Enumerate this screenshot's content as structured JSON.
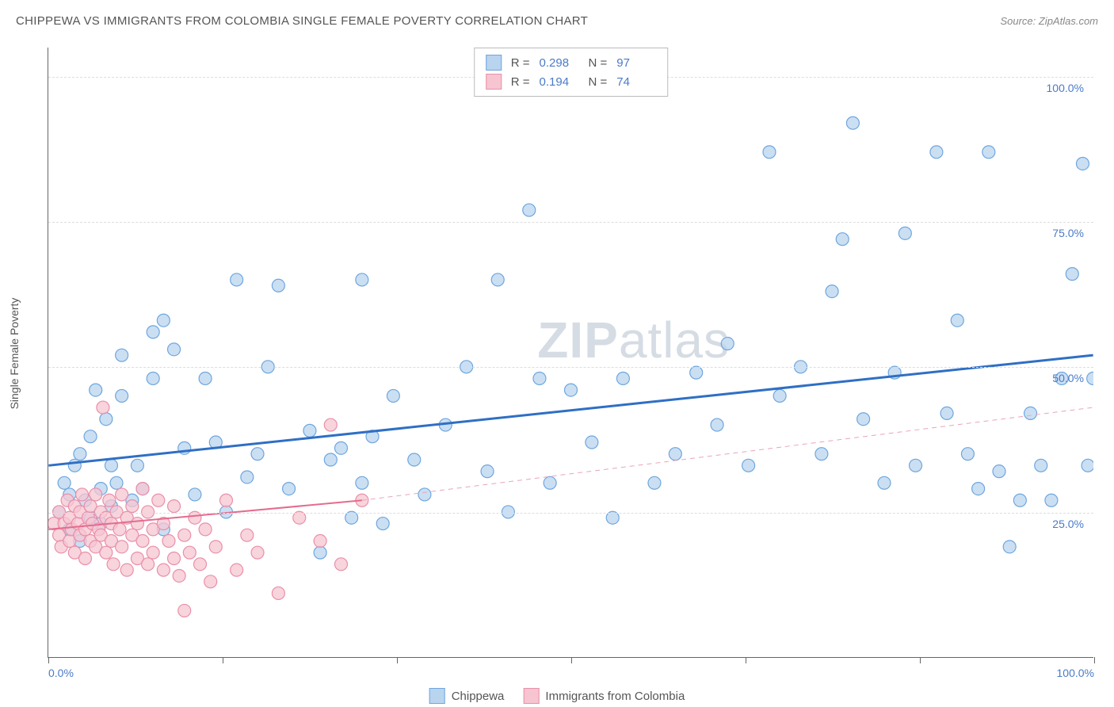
{
  "title": "CHIPPEWA VS IMMIGRANTS FROM COLOMBIA SINGLE FEMALE POVERTY CORRELATION CHART",
  "source": "Source: ZipAtlas.com",
  "watermark": {
    "bold": "ZIP",
    "rest": "atlas"
  },
  "yaxis": {
    "label": "Single Female Poverty"
  },
  "chart": {
    "type": "scatter",
    "xlim": [
      0,
      100
    ],
    "ylim": [
      0,
      105
    ],
    "background_color": "#ffffff",
    "grid_color": "#dddddd",
    "x_ticks": [
      0,
      16.67,
      33.33,
      50,
      66.67,
      83.33,
      100
    ],
    "x_tick_labels": [
      "0.0%",
      "",
      "",
      "",
      "",
      "",
      "100.0%"
    ],
    "y_gridlines": [
      25,
      50,
      75,
      100
    ],
    "y_tick_labels": [
      "25.0%",
      "50.0%",
      "75.0%",
      "100.0%"
    ],
    "marker_radius": 8,
    "series": [
      {
        "name": "Chippewa",
        "fill_color": "#b9d4ef",
        "stroke_color": "#6ea6de",
        "fill_opacity": 0.75,
        "r_value": "0.298",
        "n_value": "97",
        "trend": {
          "x1": 0,
          "y1": 33,
          "x2": 100,
          "y2": 52,
          "color": "#2f6fc4",
          "width": 3,
          "dash": false
        },
        "points": [
          [
            1,
            25
          ],
          [
            1.5,
            30
          ],
          [
            2,
            22
          ],
          [
            2,
            28
          ],
          [
            2.5,
            33
          ],
          [
            3,
            20
          ],
          [
            3,
            35
          ],
          [
            3.5,
            27
          ],
          [
            4,
            24
          ],
          [
            4,
            38
          ],
          [
            4.5,
            46
          ],
          [
            5,
            23
          ],
          [
            5,
            29
          ],
          [
            5.5,
            41
          ],
          [
            6,
            26
          ],
          [
            6,
            33
          ],
          [
            6.5,
            30
          ],
          [
            7,
            52
          ],
          [
            7,
            45
          ],
          [
            8,
            27
          ],
          [
            8.5,
            33
          ],
          [
            9,
            29
          ],
          [
            10,
            56
          ],
          [
            10,
            48
          ],
          [
            11,
            22
          ],
          [
            11,
            58
          ],
          [
            12,
            53
          ],
          [
            13,
            36
          ],
          [
            14,
            28
          ],
          [
            15,
            48
          ],
          [
            16,
            37
          ],
          [
            17,
            25
          ],
          [
            18,
            65
          ],
          [
            19,
            31
          ],
          [
            20,
            35
          ],
          [
            21,
            50
          ],
          [
            22,
            64
          ],
          [
            23,
            29
          ],
          [
            25,
            39
          ],
          [
            26,
            18
          ],
          [
            27,
            34
          ],
          [
            28,
            36
          ],
          [
            29,
            24
          ],
          [
            30,
            30
          ],
          [
            30,
            65
          ],
          [
            31,
            38
          ],
          [
            32,
            23
          ],
          [
            33,
            45
          ],
          [
            35,
            34
          ],
          [
            36,
            28
          ],
          [
            38,
            40
          ],
          [
            40,
            50
          ],
          [
            42,
            32
          ],
          [
            43,
            65
          ],
          [
            44,
            25
          ],
          [
            46,
            77
          ],
          [
            47,
            48
          ],
          [
            48,
            30
          ],
          [
            50,
            46
          ],
          [
            52,
            37
          ],
          [
            54,
            24
          ],
          [
            55,
            48
          ],
          [
            58,
            30
          ],
          [
            60,
            35
          ],
          [
            62,
            49
          ],
          [
            64,
            40
          ],
          [
            65,
            54
          ],
          [
            67,
            33
          ],
          [
            69,
            87
          ],
          [
            70,
            45
          ],
          [
            72,
            50
          ],
          [
            74,
            35
          ],
          [
            75,
            63
          ],
          [
            76,
            72
          ],
          [
            77,
            92
          ],
          [
            78,
            41
          ],
          [
            80,
            30
          ],
          [
            81,
            49
          ],
          [
            82,
            73
          ],
          [
            83,
            33
          ],
          [
            85,
            87
          ],
          [
            86,
            42
          ],
          [
            87,
            58
          ],
          [
            88,
            35
          ],
          [
            89,
            29
          ],
          [
            90,
            87
          ],
          [
            91,
            32
          ],
          [
            92,
            19
          ],
          [
            93,
            27
          ],
          [
            94,
            42
          ],
          [
            95,
            33
          ],
          [
            96,
            27
          ],
          [
            97,
            48
          ],
          [
            98,
            66
          ],
          [
            99,
            85
          ],
          [
            99.5,
            33
          ],
          [
            100,
            48
          ]
        ]
      },
      {
        "name": "Immigrants from Colombia",
        "fill_color": "#f6c5d1",
        "stroke_color": "#ea8fa8",
        "fill_opacity": 0.75,
        "r_value": "0.194",
        "n_value": "74",
        "trend": {
          "x1": 0,
          "y1": 22,
          "x2": 30,
          "y2": 27,
          "color": "#e56b8f",
          "width": 2,
          "dash": false
        },
        "trend_ext": {
          "x1": 30,
          "y1": 27,
          "x2": 100,
          "y2": 43,
          "color": "#e9a5b8",
          "width": 1,
          "dash": true
        },
        "points": [
          [
            0.5,
            23
          ],
          [
            1,
            21
          ],
          [
            1,
            25
          ],
          [
            1.2,
            19
          ],
          [
            1.5,
            23
          ],
          [
            1.8,
            27
          ],
          [
            2,
            20
          ],
          [
            2,
            24
          ],
          [
            2.2,
            22
          ],
          [
            2.5,
            26
          ],
          [
            2.5,
            18
          ],
          [
            2.8,
            23
          ],
          [
            3,
            25
          ],
          [
            3,
            21
          ],
          [
            3.2,
            28
          ],
          [
            3.5,
            22
          ],
          [
            3.5,
            17
          ],
          [
            3.8,
            24
          ],
          [
            4,
            26
          ],
          [
            4,
            20
          ],
          [
            4.2,
            23
          ],
          [
            4.5,
            28
          ],
          [
            4.5,
            19
          ],
          [
            4.8,
            22
          ],
          [
            5,
            25
          ],
          [
            5,
            21
          ],
          [
            5.2,
            43
          ],
          [
            5.5,
            24
          ],
          [
            5.5,
            18
          ],
          [
            5.8,
            27
          ],
          [
            6,
            23
          ],
          [
            6,
            20
          ],
          [
            6.2,
            16
          ],
          [
            6.5,
            25
          ],
          [
            6.8,
            22
          ],
          [
            7,
            28
          ],
          [
            7,
            19
          ],
          [
            7.5,
            15
          ],
          [
            7.5,
            24
          ],
          [
            8,
            21
          ],
          [
            8,
            26
          ],
          [
            8.5,
            17
          ],
          [
            8.5,
            23
          ],
          [
            9,
            20
          ],
          [
            9,
            29
          ],
          [
            9.5,
            16
          ],
          [
            9.5,
            25
          ],
          [
            10,
            22
          ],
          [
            10,
            18
          ],
          [
            10.5,
            27
          ],
          [
            11,
            15
          ],
          [
            11,
            23
          ],
          [
            11.5,
            20
          ],
          [
            12,
            17
          ],
          [
            12,
            26
          ],
          [
            12.5,
            14
          ],
          [
            13,
            21
          ],
          [
            13,
            8
          ],
          [
            13.5,
            18
          ],
          [
            14,
            24
          ],
          [
            14.5,
            16
          ],
          [
            15,
            22
          ],
          [
            15.5,
            13
          ],
          [
            16,
            19
          ],
          [
            17,
            27
          ],
          [
            18,
            15
          ],
          [
            19,
            21
          ],
          [
            20,
            18
          ],
          [
            22,
            11
          ],
          [
            24,
            24
          ],
          [
            26,
            20
          ],
          [
            27,
            40
          ],
          [
            28,
            16
          ],
          [
            30,
            27
          ]
        ]
      }
    ]
  },
  "stats_box": {
    "r_label": "R =",
    "n_label": "N ="
  },
  "bottom_legend": [
    "Chippewa",
    "Immigrants from Colombia"
  ]
}
